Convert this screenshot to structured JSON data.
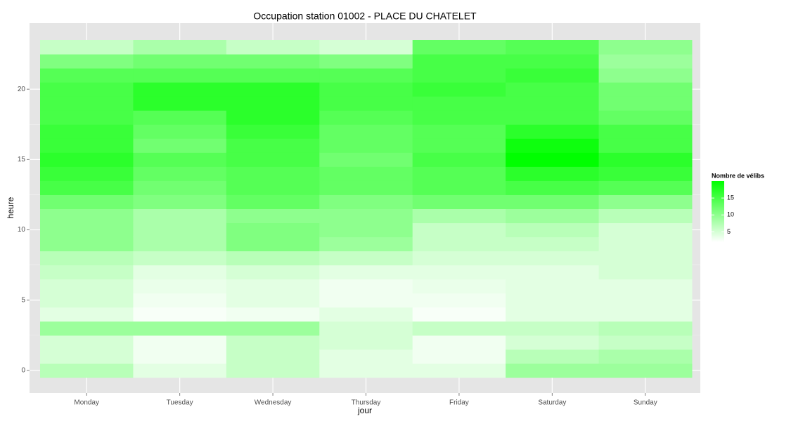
{
  "chart_data": {
    "type": "heatmap",
    "title": "Occupation station 01002 - PLACE DU CHATELET",
    "x_label": "jour",
    "y_label": "heure",
    "categories": [
      "Monday",
      "Tuesday",
      "Wednesday",
      "Thursday",
      "Friday",
      "Saturday",
      "Sunday"
    ],
    "y": [
      0,
      1,
      2,
      3,
      4,
      5,
      6,
      7,
      8,
      9,
      10,
      11,
      12,
      13,
      14,
      15,
      16,
      17,
      18,
      19,
      20,
      21,
      22,
      23
    ],
    "values": [
      [
        7,
        5,
        5,
        9,
        4,
        5,
        5,
        6,
        7,
        10,
        10,
        10,
        12,
        15,
        16,
        17,
        16,
        16,
        15,
        15,
        15,
        14,
        11,
        6
      ],
      [
        4,
        3,
        3,
        9,
        2.5,
        3,
        3.5,
        4,
        6,
        8,
        8,
        8,
        11,
        12,
        13,
        14,
        12,
        13,
        14,
        17,
        17,
        14,
        12,
        8
      ],
      [
        6,
        6,
        6,
        9,
        3,
        4,
        4,
        5,
        7,
        11,
        11,
        10,
        13,
        14,
        14,
        15,
        15,
        16,
        17,
        17,
        17,
        14,
        12,
        6
      ],
      [
        4,
        4,
        5,
        5,
        4,
        3,
        3,
        4,
        6,
        9,
        10,
        10,
        11,
        13,
        13,
        12,
        13,
        13,
        14,
        15,
        15,
        14,
        11,
        5
      ],
      [
        4,
        3,
        3,
        6,
        2.5,
        3,
        3.5,
        4,
        5,
        6,
        6,
        8,
        12,
        14,
        14,
        15,
        14,
        14,
        15,
        15,
        16,
        15,
        15,
        13
      ],
      [
        9,
        7,
        5,
        6,
        4,
        4,
        4,
        4,
        5,
        6,
        7,
        9,
        12,
        15,
        17,
        20,
        19,
        17,
        15,
        15,
        15,
        16,
        15,
        14
      ],
      [
        9,
        8,
        6,
        7,
        4,
        4,
        4,
        5,
        5,
        5,
        5,
        7,
        10,
        14,
        16,
        17,
        15,
        15,
        13,
        12,
        12,
        10,
        9,
        10
      ]
    ],
    "ylim": [
      -0.5,
      23.5
    ],
    "yticks": [
      0,
      5,
      10,
      15,
      20
    ],
    "grid": true,
    "color_low": "#ffffff",
    "color_high": "#00ff00",
    "colorbar": {
      "title": "Nombre de vélibs",
      "lim": [
        2,
        20
      ],
      "ticks": [
        5,
        10,
        15
      ]
    }
  }
}
